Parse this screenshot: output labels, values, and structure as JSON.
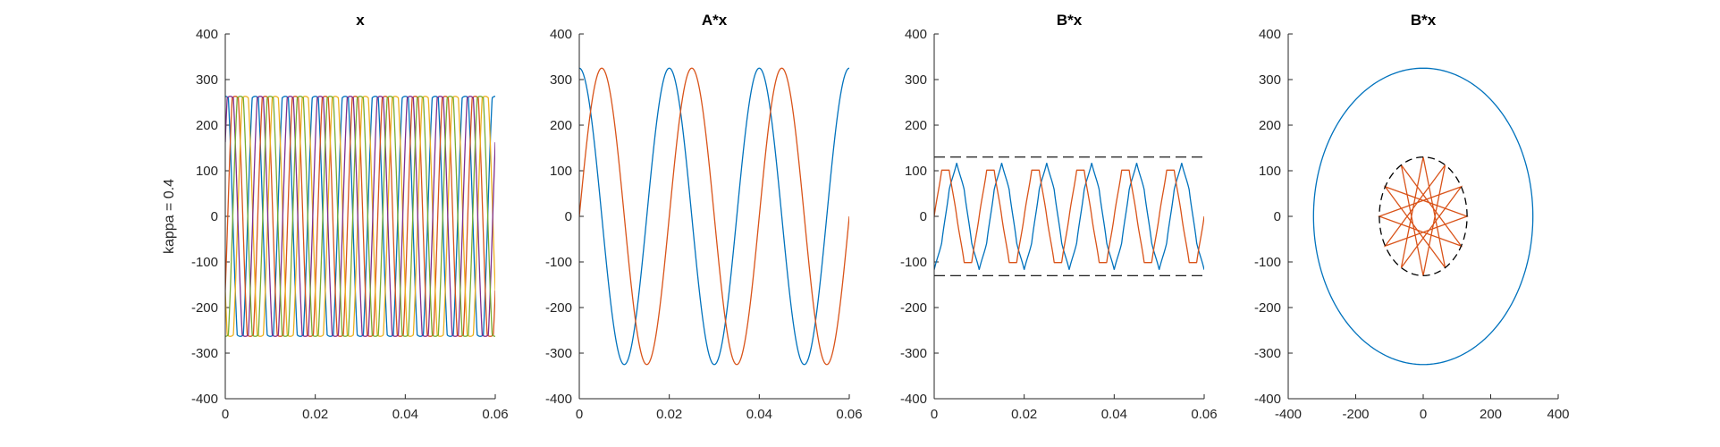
{
  "colors": {
    "blue": "#0072BD",
    "orange": "#D95319",
    "yellow": "#EDB120",
    "purple": "#7E2F8E",
    "green": "#77AC30",
    "axis": "#262626",
    "dashed": "#000000"
  },
  "chart_data": [
    {
      "type": "line",
      "title": "x",
      "ylabel": "kappa = 0.4",
      "xlim": [
        0,
        0.06
      ],
      "ylim": [
        -400,
        400
      ],
      "xticks": [
        "0",
        "0.02",
        "0.04",
        "0.06"
      ],
      "yticks": [
        "-400",
        "-300",
        "-200",
        "-100",
        "0",
        "100",
        "200",
        "300",
        "400"
      ],
      "series": [
        {
          "color": "blue",
          "kind": "clipped_sine",
          "amplitude": 325,
          "clip": 260,
          "frequency": 150,
          "phase_deg": 90
        },
        {
          "color": "orange",
          "kind": "clipped_sine",
          "amplitude": 325,
          "clip": 260,
          "frequency": 150,
          "phase_deg": -30
        },
        {
          "color": "yellow",
          "kind": "clipped_sine",
          "amplitude": 325,
          "clip": 260,
          "frequency": 150,
          "phase_deg": 210
        },
        {
          "color": "purple",
          "kind": "clipped_sine",
          "amplitude": 325,
          "clip": 260,
          "frequency": 150,
          "phase_deg": 30
        },
        {
          "color": "green",
          "kind": "clipped_sine",
          "amplitude": 325,
          "clip": 260,
          "frequency": 150,
          "phase_deg": 270
        }
      ]
    },
    {
      "type": "line",
      "title": "A*x",
      "xlim": [
        0,
        0.06
      ],
      "ylim": [
        -400,
        400
      ],
      "xticks": [
        "0",
        "0.02",
        "0.04",
        "0.06"
      ],
      "yticks": [
        "-400",
        "-300",
        "-200",
        "-100",
        "0",
        "100",
        "200",
        "300",
        "400"
      ],
      "series": [
        {
          "color": "blue",
          "kind": "sine",
          "amplitude": 325,
          "frequency": 50,
          "phase_deg": 90
        },
        {
          "color": "orange",
          "kind": "sine",
          "amplitude": 325,
          "frequency": 50,
          "phase_deg": 0
        }
      ]
    },
    {
      "type": "line",
      "title": "B*x",
      "xlim": [
        0,
        0.06
      ],
      "ylim": [
        -400,
        400
      ],
      "xticks": [
        "0",
        "0.02",
        "0.04",
        "0.06"
      ],
      "yticks": [
        "-400",
        "-300",
        "-200",
        "-100",
        "0",
        "100",
        "200",
        "300",
        "400"
      ],
      "series": [
        {
          "color": "blue",
          "kind": "hexagon_component",
          "radius": 130,
          "frequency": 50,
          "speed": 5,
          "component": "x",
          "sign": -1
        },
        {
          "color": "orange",
          "kind": "hexagon_component",
          "radius": 130,
          "frequency": 50,
          "speed": 5,
          "component": "y",
          "sign": 1
        }
      ],
      "hlines": [
        {
          "y": 130,
          "style": "dashed"
        },
        {
          "y": -130,
          "style": "dashed"
        }
      ]
    },
    {
      "type": "line",
      "title": "B*x",
      "xlim": [
        -400,
        400
      ],
      "ylim": [
        -400,
        400
      ],
      "xticks": [
        "-400",
        "-200",
        "0",
        "200",
        "400"
      ],
      "yticks": [
        "-400",
        "-300",
        "-200",
        "-100",
        "0",
        "100",
        "200",
        "300",
        "400"
      ],
      "series": [
        {
          "color": "blue",
          "kind": "circle",
          "radius": 325
        },
        {
          "color": "orange",
          "kind": "star",
          "radius": 130,
          "points": 12,
          "step": 5
        },
        {
          "color": "dashed",
          "kind": "circle_dashed",
          "radius": 130
        }
      ]
    }
  ]
}
